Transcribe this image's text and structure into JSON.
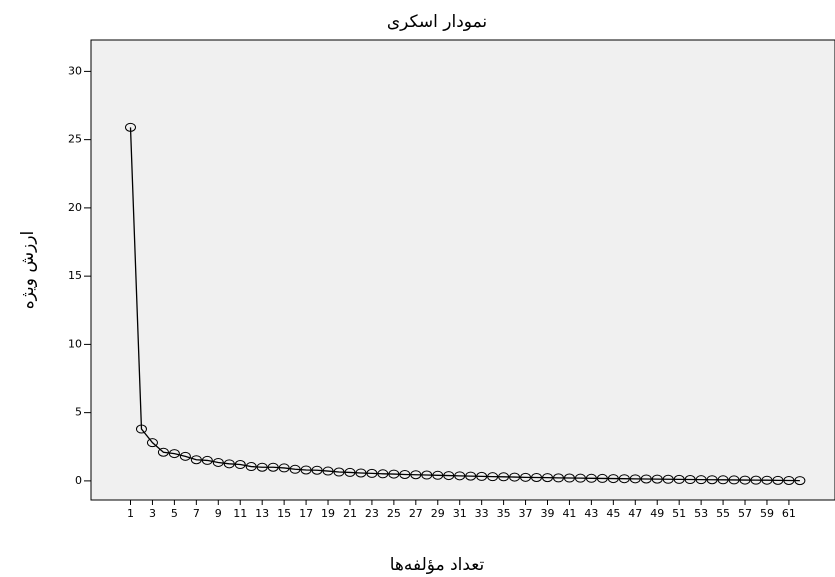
{
  "chart_data": {
    "type": "line",
    "title": "نمودار اسکری",
    "x_label": "تعداد مؤلفه‌ها",
    "y_label": "ارزش ویژه",
    "x": [
      1,
      2,
      3,
      4,
      5,
      6,
      7,
      8,
      9,
      10,
      11,
      12,
      13,
      14,
      15,
      16,
      17,
      18,
      19,
      20,
      21,
      22,
      23,
      24,
      25,
      26,
      27,
      28,
      29,
      30,
      31,
      32,
      33,
      34,
      35,
      36,
      37,
      38,
      39,
      40,
      41,
      42,
      43,
      44,
      45,
      46,
      47,
      48,
      49,
      50,
      51,
      52,
      53,
      54,
      55,
      56,
      57,
      58,
      59,
      60,
      61,
      62
    ],
    "series": [
      {
        "name": "ارزش ویژه",
        "color": "#000000",
        "values": [
          25.9,
          3.8,
          2.8,
          2.1,
          2.0,
          1.8,
          1.55,
          1.5,
          1.35,
          1.25,
          1.2,
          1.05,
          1.0,
          1.0,
          0.95,
          0.85,
          0.8,
          0.78,
          0.72,
          0.65,
          0.62,
          0.58,
          0.55,
          0.52,
          0.5,
          0.47,
          0.45,
          0.43,
          0.41,
          0.39,
          0.37,
          0.35,
          0.33,
          0.31,
          0.3,
          0.28,
          0.26,
          0.25,
          0.24,
          0.22,
          0.21,
          0.2,
          0.19,
          0.18,
          0.17,
          0.16,
          0.15,
          0.14,
          0.13,
          0.12,
          0.11,
          0.1,
          0.09,
          0.085,
          0.08,
          0.07,
          0.06,
          0.055,
          0.05,
          0.04,
          0.03,
          0.02
        ]
      }
    ],
    "xlim": [
      -2.6,
      65.2
    ],
    "xticks": [
      1,
      3,
      5,
      7,
      9,
      11,
      13,
      15,
      17,
      19,
      21,
      23,
      25,
      27,
      29,
      31,
      33,
      35,
      37,
      39,
      41,
      43,
      45,
      47,
      49,
      51,
      53,
      55,
      57,
      59,
      61
    ],
    "ylim": [
      -1.4,
      32.3
    ],
    "yticks": [
      0,
      5,
      10,
      15,
      20,
      25,
      30
    ]
  }
}
